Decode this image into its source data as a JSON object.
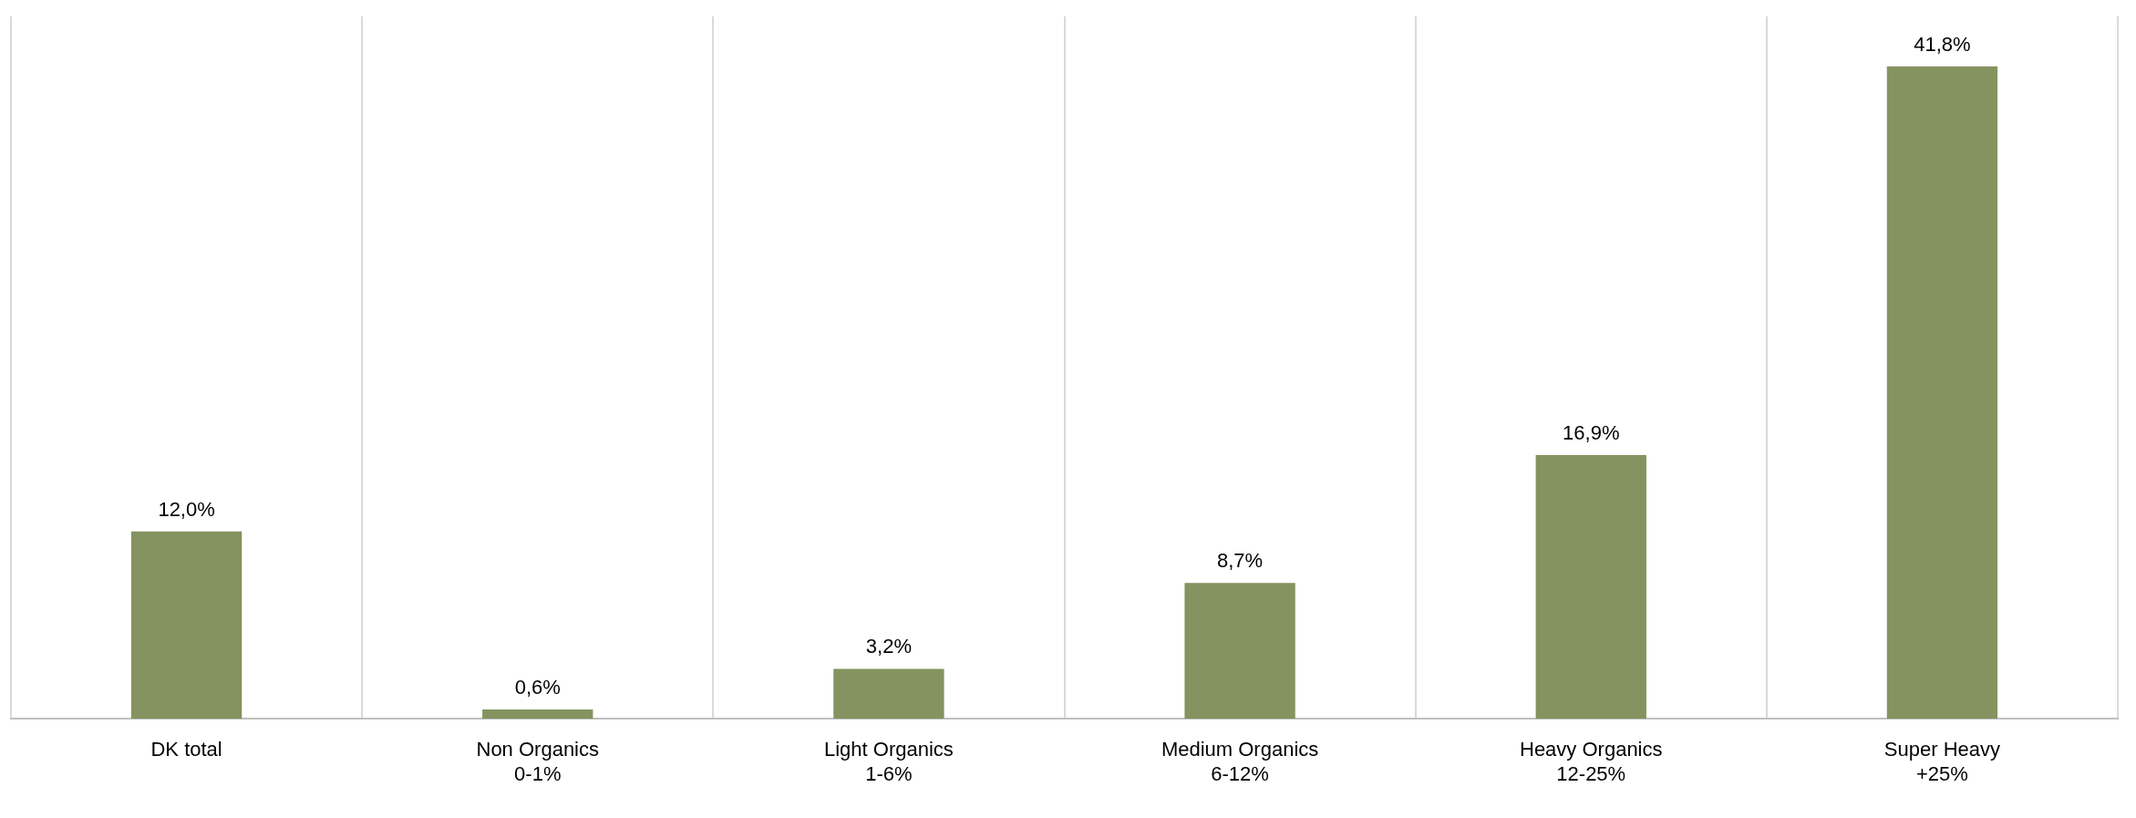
{
  "chart_data": {
    "type": "bar",
    "categories": [
      "DK total",
      "Non Organics\n0-1%",
      "Light Organics\n1-6%",
      "Medium Organics\n6-12%",
      "Heavy Organics\n12-25%",
      "Super Heavy\n+25%"
    ],
    "values": [
      12.0,
      0.6,
      3.2,
      8.7,
      16.9,
      41.8
    ],
    "value_labels": [
      "12,0%",
      "0,6%",
      "3,2%",
      "8,7%",
      "16,9%",
      "41,8%"
    ],
    "color": "#84935f",
    "grid": "x",
    "legend": false
  }
}
